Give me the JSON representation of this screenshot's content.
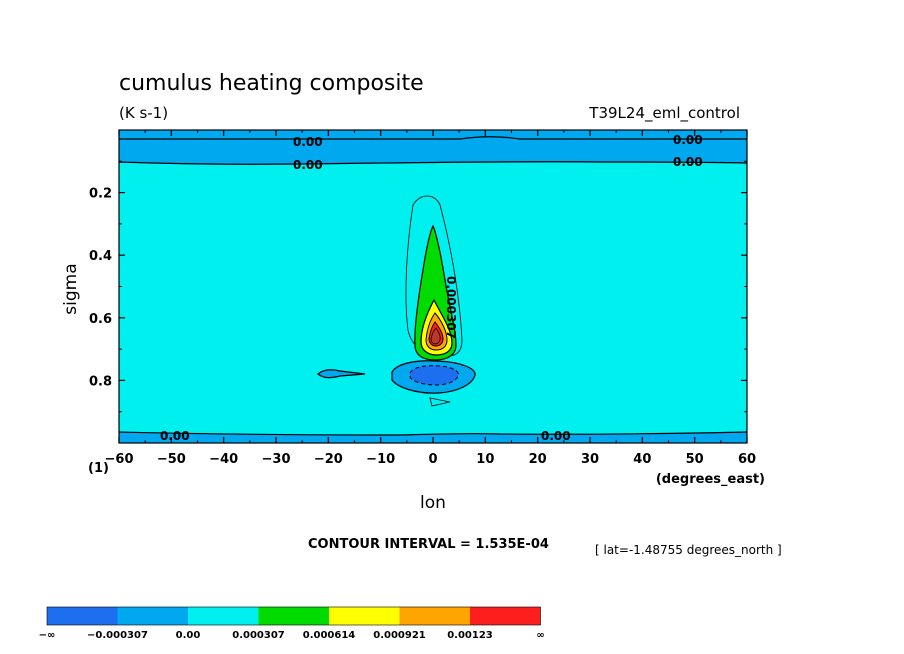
{
  "chart_data": {
    "type": "contour",
    "title": "cumulus heating composite",
    "units": "(K s-1)",
    "experiment": "T39L24_eml_control",
    "xlabel": "lon",
    "x_units": "(degrees_east)",
    "ylabel": "sigma",
    "y_inverted": true,
    "xlim": [
      -60,
      60
    ],
    "ylim": [
      0.0,
      1.0
    ],
    "x_ticks": [
      "−60",
      "−50",
      "−40",
      "−30",
      "−20",
      "−10",
      "0",
      "10",
      "20",
      "30",
      "40",
      "50",
      "60"
    ],
    "y_ticks": [
      "0.2",
      "0.4",
      "0.6",
      "0.8"
    ],
    "corner_label": "(1)",
    "contour_interval_text": "CONTOUR INTERVAL = 1.535E-04",
    "latitude_note": "[ lat=-1.48755 degrees_north ]",
    "contour_labels": [
      "0.00",
      "0.00",
      "0.00",
      "0.00",
      "0.00",
      "0.00",
      "0.000307"
    ],
    "levels": [
      -0.000307,
      0.0,
      0.000307,
      0.000614,
      0.000921,
      0.00123
    ],
    "colorbar": {
      "labels": [
        "−∞",
        "−0.000307",
        "0.00",
        "0.000307",
        "0.000614",
        "0.000921",
        "0.00123",
        "∞"
      ],
      "colors": [
        "#1e6ef0",
        "#00a8f0",
        "#00f0f0",
        "#00dc00",
        "#ffff00",
        "#ffa500",
        "#ff1e1e"
      ]
    },
    "features": [
      {
        "desc": "heating maximum",
        "lon": 0,
        "sigma": 0.66,
        "value_range": [
          0.00123,
          0.00138
        ]
      },
      {
        "desc": "cooling minimum",
        "lon": 0,
        "sigma": 0.77,
        "value_range": [
          -0.00046,
          -0.000307
        ]
      }
    ]
  }
}
